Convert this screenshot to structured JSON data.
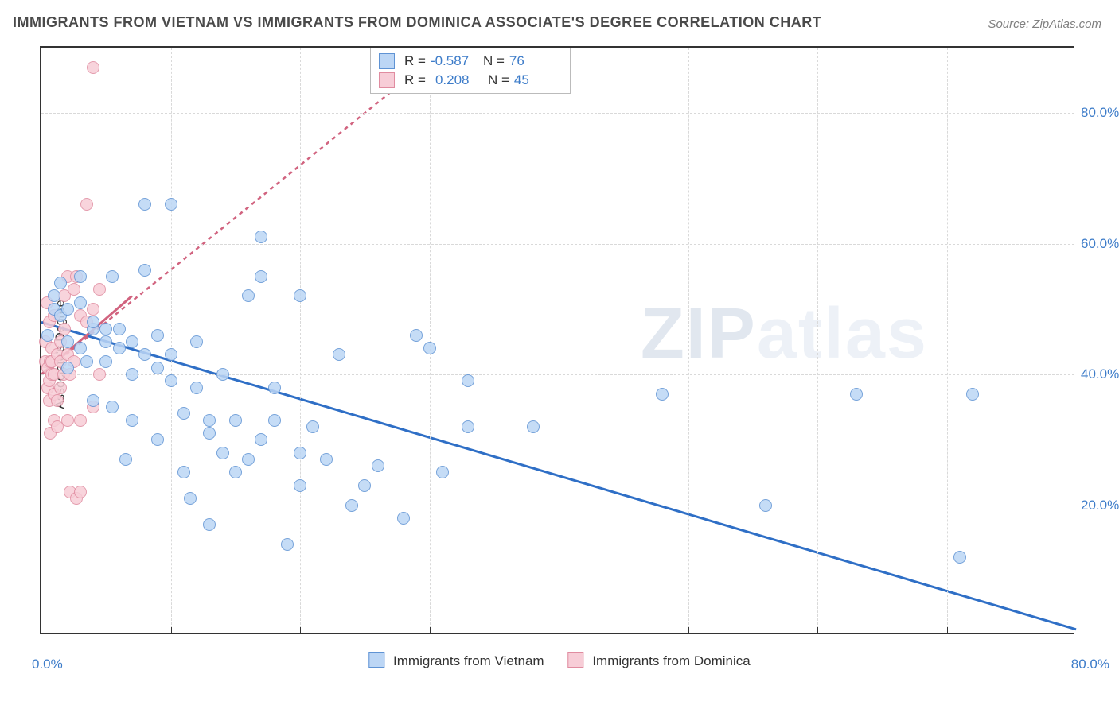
{
  "title": "IMMIGRANTS FROM VIETNAM VS IMMIGRANTS FROM DOMINICA ASSOCIATE'S DEGREE CORRELATION CHART",
  "source": "Source: ZipAtlas.com",
  "watermark": "ZIPatlas",
  "ylabel": "Associate's Degree",
  "chart": {
    "type": "scatter",
    "xlim": [
      0,
      80
    ],
    "ylim": [
      0,
      90
    ],
    "grid_color": "#d9d9d9",
    "background_color": "#ffffff",
    "axis_color": "#333333",
    "ytick_values": [
      20,
      40,
      60,
      80
    ],
    "ytick_labels": [
      "20.0%",
      "40.0%",
      "60.0%",
      "80.0%"
    ],
    "xtick_values": [
      10,
      20,
      30,
      40,
      50,
      60,
      70
    ],
    "xtick_min_label": "0.0%",
    "xtick_max_label": "80.0%",
    "axis_label_color": "#3d7cc9",
    "label_fontsize": 17,
    "title_fontsize": 18,
    "marker_radius": 7,
    "marker_border_width": 1.3
  },
  "series": [
    {
      "name": "Immigrants from Vietnam",
      "fill": "#bcd6f5",
      "stroke": "#5f93d4",
      "line_color": "#2f6fc6",
      "line_width": 3,
      "r_label": "R =",
      "r_value": "-0.587",
      "n_label": "N =",
      "n_value": "76",
      "reg": {
        "x1": 0,
        "y1": 48,
        "x2": 80,
        "y2": 1
      },
      "points": [
        [
          0.5,
          46
        ],
        [
          1,
          50
        ],
        [
          1,
          52
        ],
        [
          1.5,
          49
        ],
        [
          1.5,
          54
        ],
        [
          2,
          41
        ],
        [
          2,
          45
        ],
        [
          2,
          50
        ],
        [
          3,
          44
        ],
        [
          3,
          51
        ],
        [
          3,
          55
        ],
        [
          3.5,
          42
        ],
        [
          4,
          36
        ],
        [
          4,
          47
        ],
        [
          4,
          48
        ],
        [
          5,
          42
        ],
        [
          5,
          45
        ],
        [
          5,
          47
        ],
        [
          5.5,
          55
        ],
        [
          5.5,
          35
        ],
        [
          6,
          44
        ],
        [
          6,
          47
        ],
        [
          6.5,
          27
        ],
        [
          7,
          33
        ],
        [
          7,
          40
        ],
        [
          7,
          45
        ],
        [
          8,
          43
        ],
        [
          8,
          56
        ],
        [
          8,
          66
        ],
        [
          9,
          46
        ],
        [
          9,
          30
        ],
        [
          9,
          41
        ],
        [
          10,
          39
        ],
        [
          10,
          66
        ],
        [
          10,
          43
        ],
        [
          11,
          25
        ],
        [
          11,
          34
        ],
        [
          11.5,
          21
        ],
        [
          12,
          38
        ],
        [
          12,
          45
        ],
        [
          13,
          31
        ],
        [
          13,
          33
        ],
        [
          13,
          17
        ],
        [
          14,
          28
        ],
        [
          14,
          40
        ],
        [
          15,
          25
        ],
        [
          15,
          33
        ],
        [
          16,
          27
        ],
        [
          16,
          52
        ],
        [
          17,
          55
        ],
        [
          17,
          61
        ],
        [
          17,
          30
        ],
        [
          18,
          38
        ],
        [
          18,
          33
        ],
        [
          19,
          14
        ],
        [
          20,
          23
        ],
        [
          20,
          28
        ],
        [
          20,
          52
        ],
        [
          21,
          32
        ],
        [
          22,
          27
        ],
        [
          23,
          43
        ],
        [
          24,
          20
        ],
        [
          25,
          23
        ],
        [
          26,
          26
        ],
        [
          28,
          18
        ],
        [
          29,
          46
        ],
        [
          30,
          44
        ],
        [
          31,
          25
        ],
        [
          33,
          39
        ],
        [
          33,
          32
        ],
        [
          38,
          32
        ],
        [
          48,
          37
        ],
        [
          56,
          20
        ],
        [
          63,
          37
        ],
        [
          71,
          12
        ],
        [
          72,
          37
        ]
      ]
    },
    {
      "name": "Immigrants from Dominica",
      "fill": "#f7cdd7",
      "stroke": "#e08ca0",
      "line_color": "#d1637f",
      "line_width": 2.5,
      "line_dash": "5,5",
      "reg": {
        "x1": 0,
        "y1": 40,
        "x2": 30,
        "y2": 88
      },
      "solid_reg": {
        "x1": 0,
        "y1": 40,
        "x2": 7,
        "y2": 52
      },
      "r_label": "R =",
      "r_value": "0.208",
      "n_label": "N =",
      "n_value": "45",
      "points": [
        [
          0.3,
          42
        ],
        [
          0.3,
          45
        ],
        [
          0.4,
          51
        ],
        [
          0.5,
          38
        ],
        [
          0.5,
          41
        ],
        [
          0.6,
          36
        ],
        [
          0.6,
          39
        ],
        [
          0.6,
          48
        ],
        [
          0.7,
          42
        ],
        [
          0.7,
          31
        ],
        [
          0.8,
          44
        ],
        [
          0.8,
          40
        ],
        [
          0.8,
          42
        ],
        [
          1,
          33
        ],
        [
          1,
          37
        ],
        [
          1,
          40
        ],
        [
          1,
          49
        ],
        [
          1.2,
          32
        ],
        [
          1.2,
          36
        ],
        [
          1.2,
          43
        ],
        [
          1.5,
          42
        ],
        [
          1.5,
          45
        ],
        [
          1.5,
          38
        ],
        [
          1.7,
          40
        ],
        [
          1.8,
          52
        ],
        [
          1.8,
          47
        ],
        [
          2,
          33
        ],
        [
          2,
          43
        ],
        [
          2,
          55
        ],
        [
          2.2,
          22
        ],
        [
          2.2,
          40
        ],
        [
          2.5,
          53
        ],
        [
          2.5,
          42
        ],
        [
          2.7,
          21
        ],
        [
          3,
          22
        ],
        [
          3,
          33
        ],
        [
          3,
          49
        ],
        [
          3.5,
          48
        ],
        [
          3.5,
          66
        ],
        [
          4,
          35
        ],
        [
          4,
          50
        ],
        [
          4.5,
          53
        ],
        [
          4.5,
          40
        ],
        [
          4,
          87
        ],
        [
          2.7,
          55
        ]
      ]
    }
  ]
}
